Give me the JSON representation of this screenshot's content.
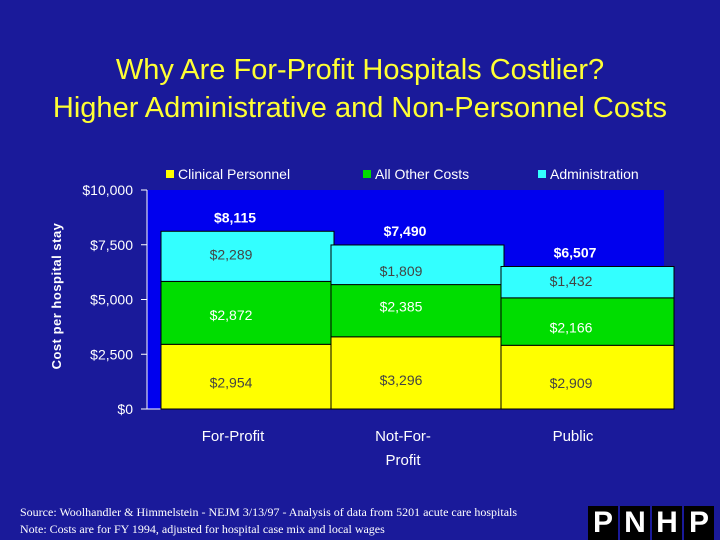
{
  "title_line1": "Why Are For-Profit Hospitals Costlier?",
  "title_line2": "Higher Administrative and Non-Personnel Costs",
  "colors": {
    "background": "#1a1a9a",
    "plot_background": "#0000ee",
    "title": "#ffff33",
    "clinical": "#ffff00",
    "other": "#00dd00",
    "admin": "#33ffff"
  },
  "chart_data": {
    "type": "bar",
    "stacked": true,
    "ylabel": "Cost per hospital stay",
    "ylim": [
      0,
      10000
    ],
    "yticks": [
      0,
      2500,
      5000,
      7500,
      10000
    ],
    "ytick_labels": [
      "$0",
      "$2,500",
      "$5,000",
      "$7,500",
      "$10,000"
    ],
    "categories": [
      "For-Profit",
      "Not-For-Profit",
      "Public"
    ],
    "category_lines": [
      [
        "For-Profit"
      ],
      [
        "Not-For-",
        "Profit"
      ],
      [
        "Public"
      ]
    ],
    "series": [
      {
        "name": "Clinical Personnel",
        "values": [
          2954,
          3296,
          2909
        ],
        "labels": [
          "$2,954",
          "$3,296",
          "$2,909"
        ]
      },
      {
        "name": "All Other Costs",
        "values": [
          2872,
          2385,
          2166
        ],
        "labels": [
          "$2,872",
          "$2,385",
          "$2,166"
        ]
      },
      {
        "name": "Administration",
        "values": [
          2289,
          1809,
          1432
        ],
        "labels": [
          "$2,289",
          "$1,809",
          "$1,432"
        ]
      }
    ],
    "totals": [
      8115,
      7490,
      6507
    ],
    "total_labels": [
      "$8,115",
      "$7,490",
      "$6,507"
    ],
    "legend_position": "top"
  },
  "source_line1": "Source: Woolhandler & Himmelstein - NEJM 3/13/97 - Analysis of data from 5201 acute care hospitals",
  "source_line2": "Note: Costs are for FY 1994, adjusted for hospital case mix and local wages",
  "logo_letters": [
    "P",
    "N",
    "H",
    "P"
  ]
}
